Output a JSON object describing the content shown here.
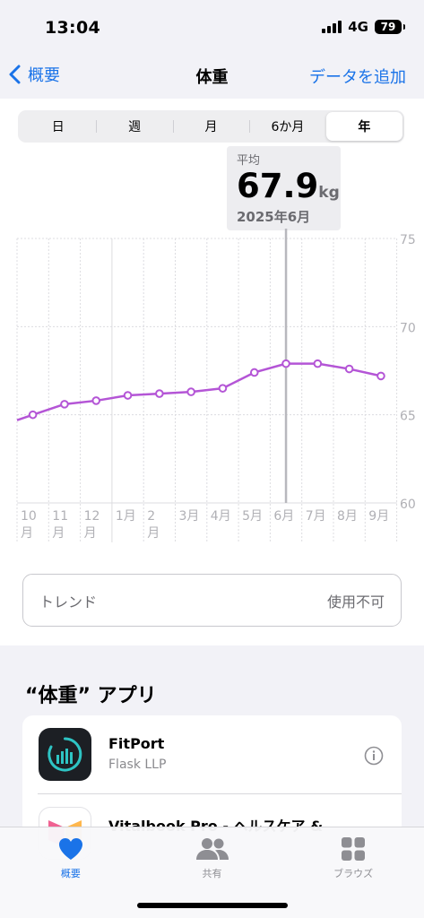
{
  "status": {
    "time": "13:04",
    "network": "4G",
    "battery": "79"
  },
  "nav": {
    "back_label": "概要",
    "title": "体重",
    "add_label": "データを追加"
  },
  "segments": [
    {
      "label": "日",
      "active": false
    },
    {
      "label": "週",
      "active": false
    },
    {
      "label": "月",
      "active": false
    },
    {
      "label": "6か月",
      "active": false
    },
    {
      "label": "年",
      "active": true
    }
  ],
  "tooltip": {
    "label": "平均",
    "value": "67.9",
    "unit": "kg",
    "date": "2025年6月"
  },
  "chart_data": {
    "type": "line",
    "categories": [
      "10月",
      "11月",
      "12月",
      "1月",
      "2月",
      "3月",
      "4月",
      "5月",
      "6月",
      "7月",
      "8月",
      "9月"
    ],
    "x_tick_lines": [
      [
        "10",
        "月"
      ],
      [
        "11",
        "月"
      ],
      [
        "12",
        "月"
      ],
      [
        "1月"
      ],
      [
        "2",
        "月"
      ],
      [
        "3月"
      ],
      [
        "4月"
      ],
      [
        "5月"
      ],
      [
        "6月"
      ],
      [
        "7月"
      ],
      [
        "8月"
      ],
      [
        "9月"
      ]
    ],
    "values": [
      65.0,
      65.6,
      65.8,
      66.1,
      66.2,
      66.3,
      66.5,
      67.4,
      67.9,
      67.9,
      67.6,
      67.2
    ],
    "yticks": [
      60,
      65,
      70,
      75
    ],
    "ylim": [
      60,
      75
    ],
    "selected_index": 8,
    "line_color": "#b455d6",
    "grid": true
  },
  "trend": {
    "label": "トレンド",
    "value": "使用不可"
  },
  "apps_section": {
    "title": "“体重” アプリ",
    "apps": [
      {
        "name": "FitPort",
        "developer": "Flask LLP"
      },
      {
        "name": "Vitalbook Pro - ヘルスケア &",
        "developer": ""
      }
    ]
  },
  "tabbar": [
    {
      "label": "概要",
      "icon": "heart-icon",
      "active": true
    },
    {
      "label": "共有",
      "icon": "people-icon",
      "active": false
    },
    {
      "label": "ブラウズ",
      "icon": "grid-icon",
      "active": false
    }
  ],
  "colors": {
    "accent": "#1a73e8",
    "line": "#b455d6"
  }
}
